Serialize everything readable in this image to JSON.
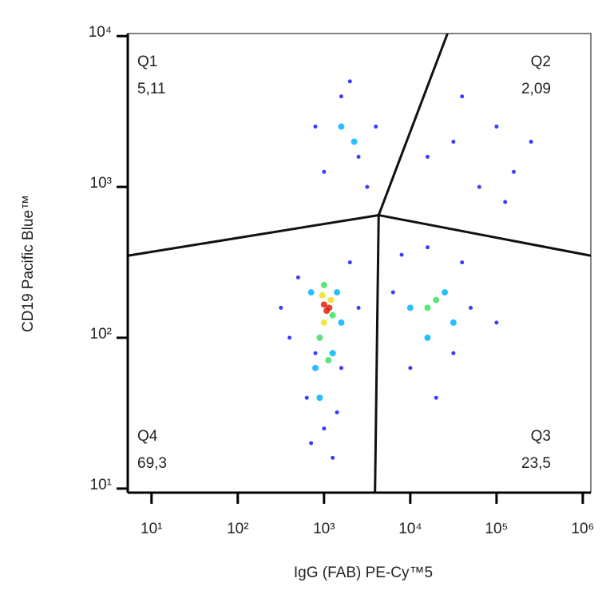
{
  "chart_data": {
    "type": "scatter",
    "x_label": "IgG (FAB) PE-Cy™5",
    "y_label": "CD19 Pacific Blue™",
    "log_x": true,
    "log_y": true,
    "xlim": [
      5.3,
      1240000
    ],
    "ylim": [
      9.4,
      10400
    ],
    "xticks": [
      {
        "value": 10,
        "label": "10¹"
      },
      {
        "value": 100,
        "label": "10²"
      },
      {
        "value": 1000,
        "label": "10³"
      },
      {
        "value": 10000,
        "label": "10⁴"
      },
      {
        "value": 100000,
        "label": "10⁵"
      },
      {
        "value": 1000000,
        "label": "10⁶"
      }
    ],
    "yticks": [
      {
        "value": 10,
        "label": "10¹"
      },
      {
        "value": 100,
        "label": "10²"
      },
      {
        "value": 1000,
        "label": "10³"
      },
      {
        "value": 10000,
        "label": "10⁴"
      }
    ],
    "gate": {
      "center": [
        4300,
        650
      ],
      "top_x": 27000,
      "bottom_x": 3900,
      "left_y": 350,
      "right_y": 350
    },
    "quadrants": [
      {
        "name": "Q1",
        "value": 5.11,
        "label": "5,11",
        "corner": "top-left"
      },
      {
        "name": "Q2",
        "value": 2.09,
        "label": "2,09",
        "corner": "top-right"
      },
      {
        "name": "Q3",
        "value": 23.5,
        "label": "23,5",
        "corner": "bottom-right"
      },
      {
        "name": "Q4",
        "value": 69.3,
        "label": "69,3",
        "corner": "bottom-left"
      }
    ],
    "series": [
      {
        "color": "#1a1aff",
        "x": [
          398,
          501,
          1995,
          1585,
          631,
          1000,
          1259,
          794,
          316,
          2512,
          708,
          1413,
          6310,
          50119,
          31623,
          10000,
          19953,
          39811,
          7943,
          100000,
          15849,
          794,
          3981,
          1995,
          1000,
          3162,
          1585,
          2512,
          31623,
          100000,
          158489,
          63096,
          15849,
          251189,
          39811,
          125893
        ],
        "values": [
          100,
          251,
          316,
          63,
          40,
          25,
          16,
          79,
          158,
          158,
          20,
          32,
          200,
          158,
          79,
          63,
          40,
          316,
          355,
          126,
          398,
          2512,
          2512,
          5012,
          1259,
          1000,
          3981,
          1585,
          1995,
          2512,
          1259,
          1000,
          1585,
          1995,
          3981,
          794
        ]
      },
      {
        "color": "#00b4ff",
        "x": [
          708,
          1413,
          794,
          1259,
          891,
          1585,
          10000,
          25119,
          15849,
          31623,
          1585,
          2239
        ],
        "values": [
          200,
          200,
          63,
          79,
          40,
          126,
          158,
          200,
          100,
          126,
          2512,
          1995
        ]
      },
      {
        "color": "#40e060",
        "x": [
          891,
          1259,
          1000,
          1122,
          15849,
          19953
        ],
        "values": [
          100,
          141,
          224,
          71,
          158,
          178
        ]
      },
      {
        "color": "#f0e020",
        "x": [
          1000,
          1202,
          955
        ],
        "values": [
          126,
          178,
          191
        ]
      },
      {
        "color": "#e02010",
        "x": [
          1072,
          1148,
          1000
        ],
        "values": [
          151,
          158,
          166
        ]
      }
    ]
  }
}
